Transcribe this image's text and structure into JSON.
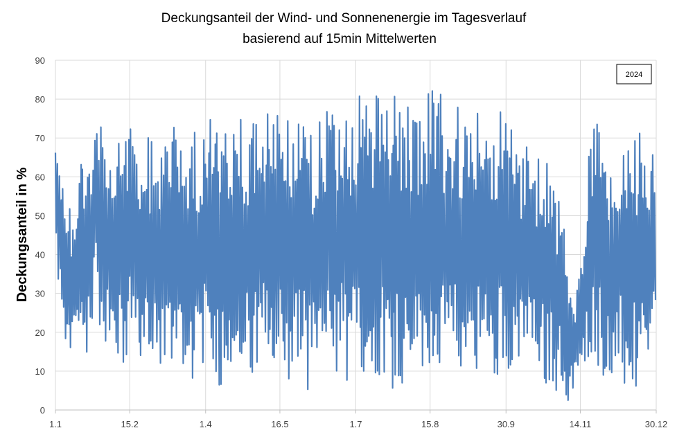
{
  "chart_data": {
    "type": "line",
    "title": "Deckungsanteil der Wind- und Sonnenenergie im Tagesverlauf",
    "subtitle": "basierend auf 15min Mittelwerten",
    "xlabel": "",
    "ylabel": "Deckungsanteil in %",
    "annotation": "2024",
    "ylim": [
      0,
      90
    ],
    "yticks": [
      0,
      10,
      20,
      30,
      40,
      50,
      60,
      70,
      80,
      90
    ],
    "xlim": [
      1,
      365
    ],
    "xticks": [
      {
        "label": "1.1",
        "day": 1
      },
      {
        "label": "15.2",
        "day": 46
      },
      {
        "label": "1.4",
        "day": 92
      },
      {
        "label": "16.5",
        "day": 137
      },
      {
        "label": "1.7",
        "day": 183
      },
      {
        "label": "15.8",
        "day": 228
      },
      {
        "label": "30.9",
        "day": 274
      },
      {
        "label": "14.11",
        "day": 319
      },
      {
        "label": "30.12",
        "day": 365
      }
    ],
    "grid": true,
    "series": [
      {
        "color": "#4f81bd",
        "x": [
          1,
          4,
          7,
          10,
          13,
          16,
          19,
          22,
          25,
          28,
          31,
          34,
          37,
          40,
          43,
          46,
          49,
          52,
          55,
          58,
          61,
          64,
          67,
          70,
          73,
          76,
          79,
          82,
          85,
          88,
          91,
          94,
          97,
          100,
          103,
          106,
          109,
          112,
          115,
          118,
          121,
          124,
          127,
          130,
          133,
          136,
          139,
          142,
          145,
          148,
          151,
          154,
          157,
          160,
          163,
          166,
          169,
          172,
          175,
          178,
          181,
          184,
          187,
          190,
          193,
          196,
          199,
          202,
          205,
          208,
          211,
          214,
          217,
          220,
          223,
          226,
          229,
          232,
          235,
          238,
          241,
          244,
          247,
          250,
          253,
          256,
          259,
          262,
          265,
          268,
          271,
          274,
          277,
          280,
          283,
          286,
          289,
          292,
          295,
          298,
          301,
          304,
          307,
          310,
          313,
          316,
          319,
          322,
          325,
          328,
          331,
          334,
          337,
          340,
          343,
          346,
          349,
          352,
          355,
          358,
          361,
          364
        ],
        "min": [
          40,
          25,
          8,
          10,
          15,
          18,
          12,
          20,
          28,
          20,
          18,
          15,
          12,
          8,
          10,
          15,
          20,
          12,
          10,
          8,
          10,
          12,
          10,
          8,
          12,
          15,
          10,
          5,
          8,
          10,
          12,
          8,
          10,
          5,
          8,
          12,
          10,
          5,
          8,
          10,
          5,
          8,
          10,
          8,
          5,
          8,
          10,
          5,
          8,
          10,
          8,
          5,
          5,
          8,
          10,
          8,
          5,
          8,
          10,
          5,
          8,
          10,
          8,
          5,
          5,
          8,
          10,
          8,
          5,
          8,
          5,
          8,
          10,
          8,
          5,
          8,
          10,
          8,
          5,
          8,
          10,
          8,
          10,
          12,
          8,
          10,
          12,
          8,
          5,
          8,
          10,
          8,
          12,
          10,
          8,
          10,
          12,
          8,
          10,
          5,
          8,
          5,
          3,
          2,
          1,
          5,
          8,
          10,
          15,
          12,
          10,
          8,
          5,
          10,
          8,
          3,
          2,
          5,
          2,
          3,
          5,
          20
        ],
        "max": [
          74,
          70,
          48,
          55,
          50,
          68,
          66,
          70,
          74,
          75,
          72,
          66,
          68,
          72,
          70,
          75,
          70,
          66,
          68,
          72,
          74,
          70,
          72,
          75,
          74,
          72,
          76,
          75,
          74,
          72,
          72,
          75,
          76,
          72,
          70,
          74,
          78,
          80,
          76,
          74,
          78,
          80,
          78,
          76,
          75,
          78,
          80,
          78,
          75,
          78,
          80,
          76,
          74,
          78,
          81,
          80,
          78,
          80,
          82,
          80,
          78,
          80,
          82,
          78,
          80,
          82,
          80,
          78,
          80,
          82,
          80,
          82,
          80,
          78,
          80,
          82,
          83,
          80,
          82,
          80,
          78,
          80,
          76,
          75,
          72,
          76,
          78,
          74,
          72,
          76,
          80,
          76,
          74,
          72,
          70,
          72,
          68,
          66,
          70,
          68,
          62,
          55,
          60,
          45,
          35,
          28,
          40,
          55,
          70,
          74,
          76,
          70,
          65,
          72,
          74,
          66,
          70,
          72,
          74,
          75,
          70,
          67
        ]
      }
    ]
  }
}
